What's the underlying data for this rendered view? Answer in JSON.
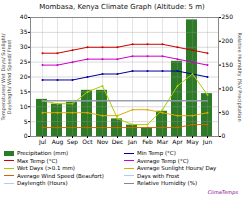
{
  "chart_data": {
    "type": "bar",
    "title": "Mombasa, Kenya Climate Graph (Altitude: 5 m)",
    "ylabel": "Temperatures/ Wet Days/ Sunlight/\nDaylength/ Wind Speed/ Frost",
    "y2label": "Relative Humidity (%)/ Precipitation",
    "categories": [
      "Jul",
      "Aug",
      "Sep",
      "Oct",
      "Nov",
      "Dec",
      "Jan",
      "Feb",
      "Mar",
      "Apr",
      "May",
      "Jun"
    ],
    "series": [
      {
        "name": "Precipitation (mm)",
        "type": "bar",
        "axis": "y2",
        "color": "#2d7a27",
        "values": [
          78,
          68,
          72,
          97,
          97,
          37,
          24,
          17,
          53,
          158,
          245,
          90
        ]
      },
      {
        "name": "Min Temp (°C)",
        "type": "line",
        "color": "#000099",
        "marker": "o",
        "values": [
          19,
          19,
          19,
          20,
          21,
          21,
          22,
          22,
          22,
          22,
          21,
          20
        ]
      },
      {
        "name": "Max Temp (°C)",
        "type": "line",
        "color": "#cc0000",
        "marker": "o",
        "values": [
          28,
          28,
          29,
          30,
          30,
          30,
          31,
          31,
          31,
          30,
          29,
          28
        ]
      },
      {
        "name": "Average Temp (°C)",
        "type": "line",
        "color": "#cc00cc",
        "marker": "o",
        "values": [
          24,
          24,
          25,
          26,
          26,
          26,
          27,
          27,
          27,
          26,
          25,
          24
        ]
      },
      {
        "name": "Wet Days (>0.1 mm)",
        "type": "line",
        "color": "#aacc00",
        "marker": "o",
        "values": [
          12,
          11,
          11,
          15,
          17,
          6,
          4,
          4,
          9,
          17,
          21,
          14
        ]
      },
      {
        "name": "Average Sunlight Hours/ Day",
        "type": "line",
        "color": "#ddaa00",
        "marker": "o",
        "values": [
          8,
          8,
          8,
          8,
          7,
          7,
          9,
          9,
          8,
          7,
          7,
          8
        ]
      },
      {
        "name": "Average Wind Speed (Beaufort)",
        "type": "line",
        "color": "#cc6600",
        "marker": "o",
        "values": [
          3,
          3,
          3,
          3,
          3,
          3,
          3,
          3,
          3,
          3,
          4,
          4
        ]
      },
      {
        "name": "Days with Frost",
        "type": "line",
        "color": "#aaccff",
        "values": [
          null,
          null,
          null,
          null,
          null,
          null,
          null,
          null,
          null,
          null,
          null,
          null
        ]
      },
      {
        "name": "Daylength (Hours)",
        "type": "line",
        "color": "#aaccff",
        "values": [
          12,
          12,
          12,
          12,
          12,
          12,
          12,
          12,
          12,
          12,
          12,
          12
        ]
      },
      {
        "name": "Relative Humidity (%)",
        "type": "line",
        "color": "#888888",
        "values": [
          12,
          12,
          12,
          12,
          12,
          12,
          12,
          12,
          12,
          12,
          12,
          12
        ]
      }
    ],
    "ylim": [
      0,
      40
    ],
    "yticks": [
      0,
      5,
      10,
      15,
      20,
      25,
      30,
      35,
      40
    ],
    "y2lim": [
      0,
      250
    ],
    "y2ticks": [
      0,
      50,
      100,
      150,
      200,
      250
    ],
    "grid": true,
    "legend": "lower left",
    "annotations": [
      {
        "text": "ClimaTemps",
        "color": "#880088"
      }
    ]
  }
}
